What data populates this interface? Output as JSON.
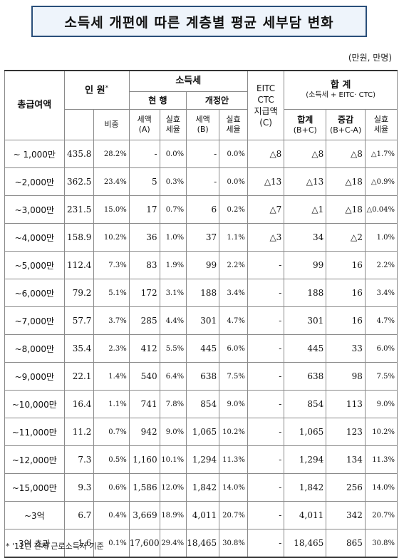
{
  "title": "소득세 개편에 따른 계층별 평균 세부담 변화",
  "unit": "(만원, 만명)",
  "header": {
    "income": "총급여액",
    "persons": "인 원",
    "persons_mark": "*",
    "ratio": "비중",
    "income_tax": "소득세",
    "current": "현 행",
    "reform": "개정안",
    "tax_a": "세액",
    "tax_a_sub": "(A)",
    "eff_rate": "실효",
    "eff_rate2": "세율",
    "tax_b": "세액",
    "tax_b_sub": "(B)",
    "eitc_1": "EITC",
    "eitc_2": "CTC",
    "eitc_3": "지급액",
    "eitc_4": "(C)",
    "total": "합 계",
    "total_sub": "(소득세 + EITC· CTC)",
    "sum": "합계",
    "sum_sub": "(B+C)",
    "change": "증감",
    "change_sub": "(B+C-A)"
  },
  "rows": [
    {
      "bracket": "~ 1,000만",
      "persons": "435.8",
      "ratio": "28.2%",
      "tax_a": "-",
      "rate_a": "0.0%",
      "tax_b": "-",
      "rate_b": "0.0%",
      "eitc": "△8",
      "sum": "△8",
      "change": "△8",
      "rate_total": "△1.7%"
    },
    {
      "bracket": "~2,000만",
      "persons": "362.5",
      "ratio": "23.4%",
      "tax_a": "5",
      "rate_a": "0.3%",
      "tax_b": "-",
      "rate_b": "0.0%",
      "eitc": "△13",
      "sum": "△13",
      "change": "△18",
      "rate_total": "△0.9%"
    },
    {
      "bracket": "~3,000만",
      "persons": "231.5",
      "ratio": "15.0%",
      "tax_a": "17",
      "rate_a": "0.7%",
      "tax_b": "6",
      "rate_b": "0.2%",
      "eitc": "△7",
      "sum": "△1",
      "change": "△18",
      "rate_total": "△0.04%"
    },
    {
      "bracket": "~4,000만",
      "persons": "158.9",
      "ratio": "10.2%",
      "tax_a": "36",
      "rate_a": "1.0%",
      "tax_b": "37",
      "rate_b": "1.1%",
      "eitc": "△3",
      "sum": "34",
      "change": "△2",
      "rate_total": "1.0%"
    },
    {
      "bracket": "~5,000만",
      "persons": "112.4",
      "ratio": "7.3%",
      "tax_a": "83",
      "rate_a": "1.9%",
      "tax_b": "99",
      "rate_b": "2.2%",
      "eitc": "-",
      "sum": "99",
      "change": "16",
      "rate_total": "2.2%"
    },
    {
      "bracket": "~6,000만",
      "persons": "79.2",
      "ratio": "5.1%",
      "tax_a": "172",
      "rate_a": "3.1%",
      "tax_b": "188",
      "rate_b": "3.4%",
      "eitc": "-",
      "sum": "188",
      "change": "16",
      "rate_total": "3.4%"
    },
    {
      "bracket": "~7,000만",
      "persons": "57.7",
      "ratio": "3.7%",
      "tax_a": "285",
      "rate_a": "4.4%",
      "tax_b": "301",
      "rate_b": "4.7%",
      "eitc": "-",
      "sum": "301",
      "change": "16",
      "rate_total": "4.7%"
    },
    {
      "bracket": "~8,000만",
      "persons": "35.4",
      "ratio": "2.3%",
      "tax_a": "412",
      "rate_a": "5.5%",
      "tax_b": "445",
      "rate_b": "6.0%",
      "eitc": "-",
      "sum": "445",
      "change": "33",
      "rate_total": "6.0%"
    },
    {
      "bracket": "~9,000만",
      "persons": "22.1",
      "ratio": "1.4%",
      "tax_a": "540",
      "rate_a": "6.4%",
      "tax_b": "638",
      "rate_b": "7.5%",
      "eitc": "-",
      "sum": "638",
      "change": "98",
      "rate_total": "7.5%"
    },
    {
      "bracket": "~10,000만",
      "persons": "16.4",
      "ratio": "1.1%",
      "tax_a": "741",
      "rate_a": "7.8%",
      "tax_b": "854",
      "rate_b": "9.0%",
      "eitc": "-",
      "sum": "854",
      "change": "113",
      "rate_total": "9.0%"
    },
    {
      "bracket": "~11,000만",
      "persons": "11.2",
      "ratio": "0.7%",
      "tax_a": "942",
      "rate_a": "9.0%",
      "tax_b": "1,065",
      "rate_b": "10.2%",
      "eitc": "-",
      "sum": "1,065",
      "change": "123",
      "rate_total": "10.2%"
    },
    {
      "bracket": "~12,000만",
      "persons": "7.3",
      "ratio": "0.5%",
      "tax_a": "1,160",
      "rate_a": "10.1%",
      "tax_b": "1,294",
      "rate_b": "11.3%",
      "eitc": "-",
      "sum": "1,294",
      "change": "134",
      "rate_total": "11.3%"
    },
    {
      "bracket": "~15,000만",
      "persons": "9.3",
      "ratio": "0.6%",
      "tax_a": "1,586",
      "rate_a": "12.0%",
      "tax_b": "1,842",
      "rate_b": "14.0%",
      "eitc": "-",
      "sum": "1,842",
      "change": "256",
      "rate_total": "14.0%"
    },
    {
      "bracket": "~3억",
      "persons": "6.7",
      "ratio": "0.4%",
      "tax_a": "3,669",
      "rate_a": "18.9%",
      "tax_b": "4,011",
      "rate_b": "20.7%",
      "eitc": "-",
      "sum": "4,011",
      "change": "342",
      "rate_total": "20.7%"
    },
    {
      "bracket": "3억 초과",
      "persons": "1.6",
      "ratio": "0.1%",
      "tax_a": "17,600",
      "rate_a": "29.4%",
      "tax_b": "18,465",
      "rate_b": "30.8%",
      "eitc": "-",
      "sum": "18,465",
      "change": "865",
      "rate_total": "30.8%"
    }
  ],
  "footnote": "* '11년 전체 근로소득자 기준"
}
